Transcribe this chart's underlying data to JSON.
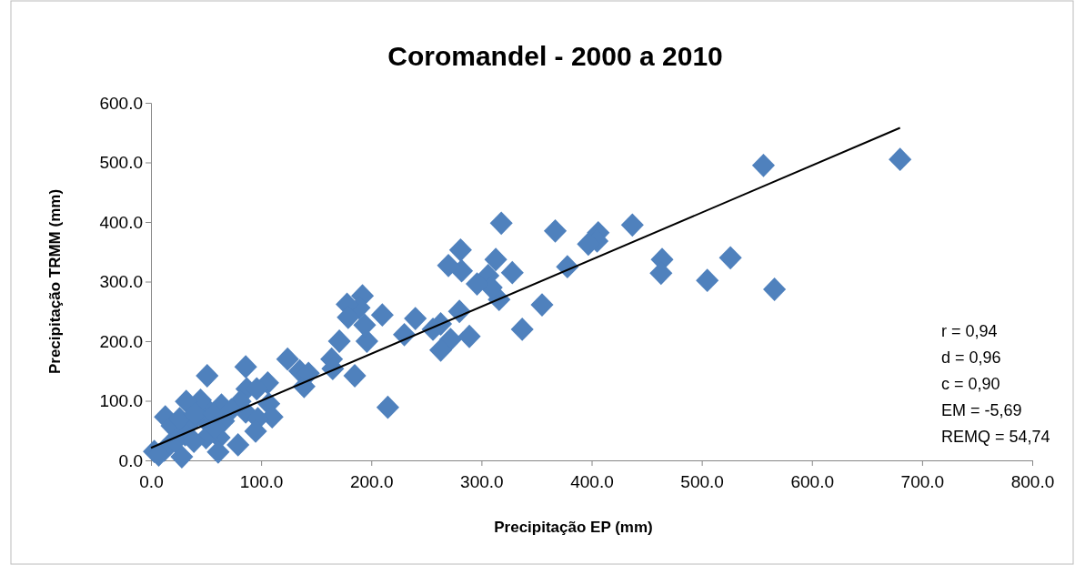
{
  "chart_data": {
    "type": "scatter",
    "title": "Coromandel - 2000 a 2010",
    "xlabel": "Precipitação EP (mm)",
    "ylabel": "Precipitação TRMM (mm)",
    "xlim": [
      0,
      800
    ],
    "ylim": [
      0,
      600
    ],
    "xticks": [
      {
        "value": 0,
        "label": "0.0"
      },
      {
        "value": 100,
        "label": "100.0"
      },
      {
        "value": 200,
        "label": "200.0"
      },
      {
        "value": 300,
        "label": "300.0"
      },
      {
        "value": 400,
        "label": "400.0"
      },
      {
        "value": 500,
        "label": "500.0"
      },
      {
        "value": 600,
        "label": "600.0"
      },
      {
        "value": 700,
        "label": "700.0"
      },
      {
        "value": 800,
        "label": "800.0"
      }
    ],
    "yticks": [
      {
        "value": 0,
        "label": "0.0"
      },
      {
        "value": 100,
        "label": "100.0"
      },
      {
        "value": 200,
        "label": "200.0"
      },
      {
        "value": 300,
        "label": "300.0"
      },
      {
        "value": 400,
        "label": "400.0"
      },
      {
        "value": 500,
        "label": "500.0"
      },
      {
        "value": 600,
        "label": "600.0"
      }
    ],
    "grid": false,
    "marker": "diamond",
    "annotations": [
      "r = 0,94",
      "d = 0,96",
      "c = 0,90",
      "EM = -5,69",
      "REMQ = 54,74"
    ],
    "series": [
      {
        "color": "#4f81bd",
        "x": [
          680,
          556,
          566,
          526,
          505,
          464,
          463,
          437,
          406,
          405,
          397,
          378,
          367,
          337,
          355,
          328,
          318,
          313,
          316,
          306,
          309,
          296,
          281,
          282,
          280,
          270,
          272,
          289,
          263,
          263,
          256,
          240,
          230,
          215,
          210,
          196,
          194,
          192,
          189,
          178,
          179,
          185,
          171,
          164,
          165,
          124,
          135,
          139,
          143,
          106,
          107,
          110,
          86,
          87,
          96,
          86,
          97,
          95,
          81,
          79,
          66,
          64,
          62,
          61,
          51,
          49,
          50,
          50,
          45,
          32,
          38,
          31,
          28,
          13,
          19,
          17,
          12,
          3,
          7,
          26,
          40,
          57,
          73,
          22,
          39,
          58
        ],
        "values": [
          505,
          495,
          287,
          340,
          302,
          337,
          314,
          395,
          382,
          368,
          363,
          325,
          385,
          220,
          261,
          315,
          398,
          337,
          270,
          310,
          290,
          296,
          353,
          318,
          250,
          327,
          203,
          208,
          185,
          229,
          220,
          238,
          211,
          89,
          244,
          200,
          227,
          276,
          256,
          262,
          240,
          142,
          200,
          170,
          154,
          170,
          150,
          124,
          146,
          130,
          95,
          73,
          157,
          120,
          120,
          81,
          70,
          49,
          99,
          26,
          66,
          93,
          38,
          14,
          142,
          90,
          66,
          38,
          101,
          99,
          67,
          43,
          6,
          73,
          58,
          27,
          17,
          15,
          9,
          70,
          78,
          78,
          85,
          32,
          32,
          55
        ]
      },
      {
        "type": "line",
        "color": "#000000",
        "marker": "none",
        "x": [
          0,
          680
        ],
        "values": [
          21,
          558
        ]
      }
    ]
  }
}
